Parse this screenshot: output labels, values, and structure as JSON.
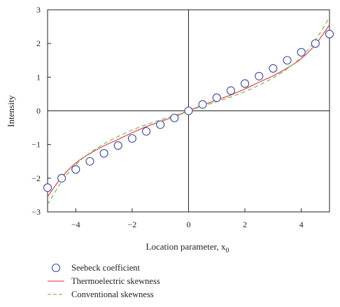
{
  "chart_data": {
    "type": "scatter",
    "xlabel": "Location parameter, x",
    "xlabel_subscript": "0",
    "ylabel": "Intensity",
    "xlim": [
      -5,
      5
    ],
    "ylim": [
      -3,
      3
    ],
    "xticks": [
      -4,
      -2,
      0,
      2,
      4
    ],
    "yticks": [
      -3,
      -2,
      -1,
      0,
      1,
      2,
      3
    ],
    "series": [
      {
        "name": "Seebeck coefficient",
        "kind": "markers",
        "marker": "open-circle",
        "color": "#3b4a9a",
        "x": [
          -5,
          -4.5,
          -4,
          -3.5,
          -3,
          -2.5,
          -2,
          -1.5,
          -1,
          -0.5,
          0,
          0.5,
          1,
          1.5,
          2,
          2.5,
          3,
          3.5,
          4,
          4.5,
          5
        ],
        "y": [
          -2.28,
          -2.0,
          -1.74,
          -1.5,
          -1.26,
          -1.03,
          -0.82,
          -0.61,
          -0.41,
          -0.21,
          0.0,
          0.19,
          0.39,
          0.6,
          0.81,
          1.03,
          1.26,
          1.5,
          1.74,
          2.0,
          2.28
        ]
      },
      {
        "name": "Thermoelectric skewness",
        "kind": "line",
        "dash": "solid",
        "color": "#d9534f",
        "x": [
          -5,
          -4.5,
          -4,
          -3.5,
          -3,
          -2.5,
          -2,
          -1.5,
          -1,
          -0.5,
          0,
          0.5,
          1,
          1.5,
          2,
          2.5,
          3,
          3.5,
          4,
          4.5,
          5
        ],
        "y": [
          -2.55,
          -1.97,
          -1.55,
          -1.27,
          -1.04,
          -0.85,
          -0.65,
          -0.47,
          -0.32,
          -0.17,
          0.0,
          0.17,
          0.32,
          0.47,
          0.65,
          0.85,
          1.04,
          1.27,
          1.55,
          1.97,
          2.55
        ]
      },
      {
        "name": "Conventional skewness",
        "kind": "line",
        "dash": "dashed",
        "color": "#7dbb6a",
        "x": [
          -5,
          -4.5,
          -4,
          -3.5,
          -3,
          -2.5,
          -2,
          -1.5,
          -1,
          -0.5,
          0,
          0.5,
          1,
          1.5,
          2,
          2.5,
          3,
          3.5,
          4,
          4.5,
          5
        ],
        "y": [
          -2.78,
          -2.1,
          -1.6,
          -1.25,
          -0.98,
          -0.76,
          -0.57,
          -0.41,
          -0.27,
          -0.14,
          0.0,
          0.14,
          0.27,
          0.41,
          0.57,
          0.76,
          0.98,
          1.25,
          1.6,
          2.1,
          2.78
        ]
      }
    ],
    "legend_placement": "bottom-left"
  }
}
